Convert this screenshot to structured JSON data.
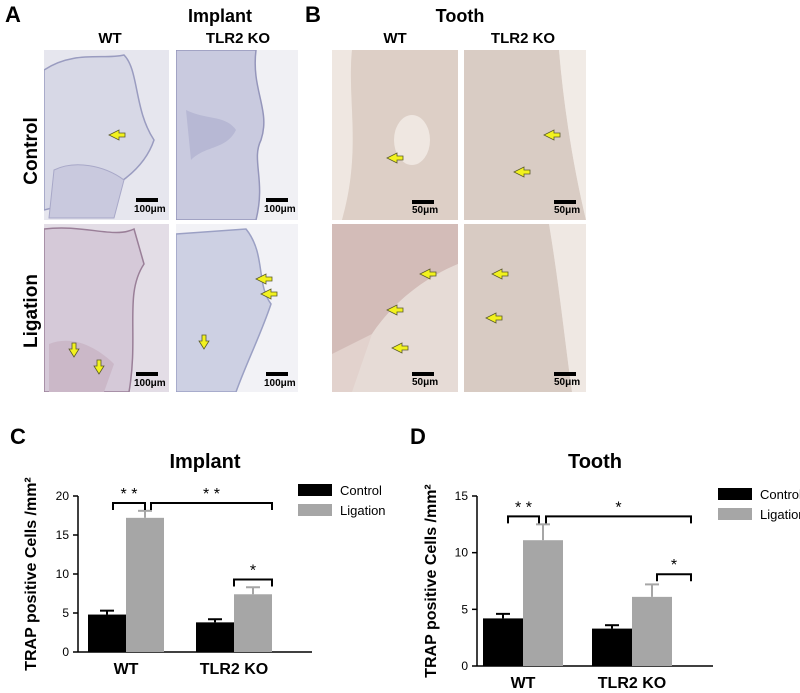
{
  "panel_a": {
    "letter": "A",
    "title": "Implant",
    "col_wt": "WT",
    "col_ko": "TLR2 KO",
    "row_control": "Control",
    "row_ligation": "Ligation",
    "scale_label": "100μm"
  },
  "panel_b": {
    "letter": "B",
    "title": "Tooth",
    "col_wt": "WT",
    "col_ko": "TLR2 KO",
    "scale_label": "50μm"
  },
  "colors": {
    "control": "#000000",
    "ligation": "#a6a6a6",
    "arrow": "#f2f21e",
    "implant_bg": "#dfe0ec",
    "tooth_bg": "#e8ddd6"
  },
  "chart_data": [
    {
      "letter": "C",
      "type": "bar",
      "title": "Implant",
      "ylabel": "TRAP positive Cells /mm²",
      "categories": [
        "WT",
        "TLR2 KO"
      ],
      "ylim": [
        0,
        20
      ],
      "yticks": [
        "0",
        "5",
        "10",
        "15",
        "20"
      ],
      "legend": [
        "Control",
        "Ligation"
      ],
      "legend_position": "top-right",
      "series": [
        {
          "name": "Control",
          "values": [
            4.8,
            3.8
          ],
          "errors": [
            0.5,
            0.4
          ]
        },
        {
          "name": "Ligation",
          "values": [
            17.2,
            7.4
          ],
          "errors": [
            0.9,
            0.9
          ]
        }
      ],
      "significance": [
        "* *",
        "* *",
        "*"
      ]
    },
    {
      "letter": "D",
      "type": "bar",
      "title": "Tooth",
      "ylabel": "TRAP positive Cells /mm²",
      "categories": [
        "WT",
        "TLR2 KO"
      ],
      "ylim": [
        0,
        15
      ],
      "yticks": [
        "0",
        "5",
        "10",
        "15"
      ],
      "legend": [
        "Control",
        "Ligation"
      ],
      "legend_position": "top-right",
      "series": [
        {
          "name": "Control",
          "values": [
            4.2,
            3.3
          ],
          "errors": [
            0.4,
            0.3
          ]
        },
        {
          "name": "Ligation",
          "values": [
            11.1,
            6.1
          ],
          "errors": [
            1.4,
            1.1
          ]
        }
      ],
      "significance": [
        "* *",
        "*",
        "*"
      ]
    }
  ]
}
